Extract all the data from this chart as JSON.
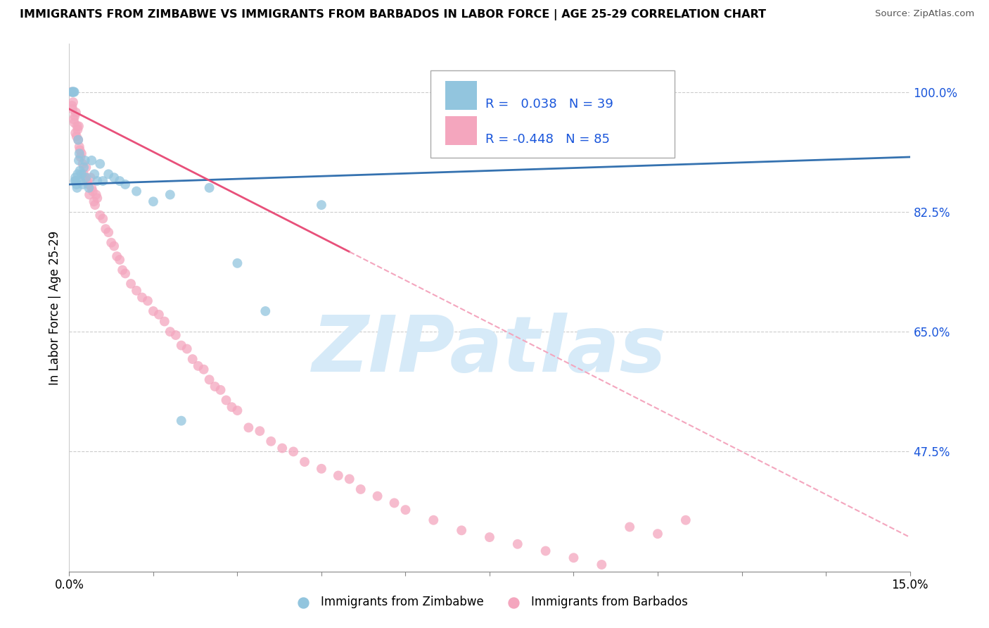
{
  "title": "IMMIGRANTS FROM ZIMBABWE VS IMMIGRANTS FROM BARBADOS IN LABOR FORCE | AGE 25-29 CORRELATION CHART",
  "source": "Source: ZipAtlas.com",
  "ylabel": "In Labor Force | Age 25-29",
  "xlim": [
    0.0,
    15.0
  ],
  "ylim": [
    30.0,
    107.0
  ],
  "yticks": [
    47.5,
    65.0,
    82.5,
    100.0
  ],
  "xticks": [
    0.0,
    1.5,
    3.0,
    4.5,
    6.0,
    7.5,
    9.0,
    10.5,
    12.0,
    13.5,
    15.0
  ],
  "color_zimbabwe": "#92c5de",
  "color_barbados": "#f4a6be",
  "trend_color_zimbabwe": "#3572b0",
  "trend_color_barbados": "#e8507a",
  "trend_dash_color": "#f4a6be",
  "watermark": "ZIPatlas",
  "watermark_color": "#d6eaf8",
  "label_zimbabwe": "Immigrants from Zimbabwe",
  "label_barbados": "Immigrants from Barbados",
  "legend_text_color": "#1a56db",
  "legend_r1_val": "0.038",
  "legend_n1_val": "39",
  "legend_r2_val": "-0.448",
  "legend_n2_val": "85",
  "zim_trend_x0": 0.0,
  "zim_trend_y0": 86.5,
  "zim_trend_x1": 15.0,
  "zim_trend_y1": 90.5,
  "bar_trend_x0": 0.0,
  "bar_trend_y0": 97.5,
  "bar_trend_x1": 15.0,
  "bar_trend_y1": 35.0,
  "bar_solid_end": 5.0,
  "zimbabwe_x": [
    0.05,
    0.06,
    0.07,
    0.08,
    0.09,
    0.1,
    0.11,
    0.12,
    0.13,
    0.14,
    0.15,
    0.16,
    0.17,
    0.18,
    0.19,
    0.2,
    0.22,
    0.24,
    0.26,
    0.28,
    0.3,
    0.35,
    0.4,
    0.45,
    0.5,
    0.55,
    0.6,
    0.7,
    0.8,
    0.9,
    1.0,
    1.2,
    1.5,
    1.8,
    2.0,
    2.5,
    3.0,
    3.5,
    4.5
  ],
  "zimbabwe_y": [
    100.0,
    100.0,
    100.0,
    100.0,
    100.0,
    87.0,
    87.5,
    87.0,
    86.5,
    86.0,
    88.0,
    93.0,
    90.0,
    91.0,
    88.5,
    87.0,
    88.0,
    86.5,
    89.0,
    90.0,
    87.5,
    86.0,
    90.0,
    88.0,
    87.0,
    89.5,
    87.0,
    88.0,
    87.5,
    87.0,
    86.5,
    85.5,
    84.0,
    85.0,
    52.0,
    86.0,
    75.0,
    68.0,
    83.5
  ],
  "barbados_x": [
    0.04,
    0.05,
    0.06,
    0.07,
    0.08,
    0.09,
    0.1,
    0.11,
    0.12,
    0.13,
    0.14,
    0.15,
    0.16,
    0.17,
    0.18,
    0.19,
    0.2,
    0.22,
    0.24,
    0.26,
    0.28,
    0.3,
    0.32,
    0.34,
    0.36,
    0.38,
    0.4,
    0.42,
    0.44,
    0.46,
    0.48,
    0.5,
    0.55,
    0.6,
    0.65,
    0.7,
    0.75,
    0.8,
    0.85,
    0.9,
    0.95,
    1.0,
    1.1,
    1.2,
    1.3,
    1.4,
    1.5,
    1.6,
    1.7,
    1.8,
    1.9,
    2.0,
    2.1,
    2.2,
    2.3,
    2.4,
    2.5,
    2.6,
    2.7,
    2.8,
    2.9,
    3.0,
    3.2,
    3.4,
    3.6,
    3.8,
    4.0,
    4.2,
    4.5,
    4.8,
    5.0,
    5.2,
    5.5,
    5.8,
    6.0,
    6.5,
    7.0,
    7.5,
    8.0,
    8.5,
    9.0,
    9.5,
    10.0,
    10.5,
    11.0
  ],
  "barbados_y": [
    100.0,
    98.0,
    97.5,
    98.5,
    96.0,
    95.5,
    96.5,
    94.0,
    97.0,
    93.5,
    95.0,
    94.5,
    93.0,
    95.0,
    92.0,
    91.5,
    90.5,
    91.0,
    89.5,
    88.0,
    87.5,
    89.0,
    87.0,
    86.5,
    85.0,
    87.5,
    86.0,
    85.5,
    84.0,
    83.5,
    85.0,
    84.5,
    82.0,
    81.5,
    80.0,
    79.5,
    78.0,
    77.5,
    76.0,
    75.5,
    74.0,
    73.5,
    72.0,
    71.0,
    70.0,
    69.5,
    68.0,
    67.5,
    66.5,
    65.0,
    64.5,
    63.0,
    62.5,
    61.0,
    60.0,
    59.5,
    58.0,
    57.0,
    56.5,
    55.0,
    54.0,
    53.5,
    51.0,
    50.5,
    49.0,
    48.0,
    47.5,
    46.0,
    45.0,
    44.0,
    43.5,
    42.0,
    41.0,
    40.0,
    39.0,
    37.5,
    36.0,
    35.0,
    34.0,
    33.0,
    32.0,
    31.0,
    36.5,
    35.5,
    37.5
  ]
}
